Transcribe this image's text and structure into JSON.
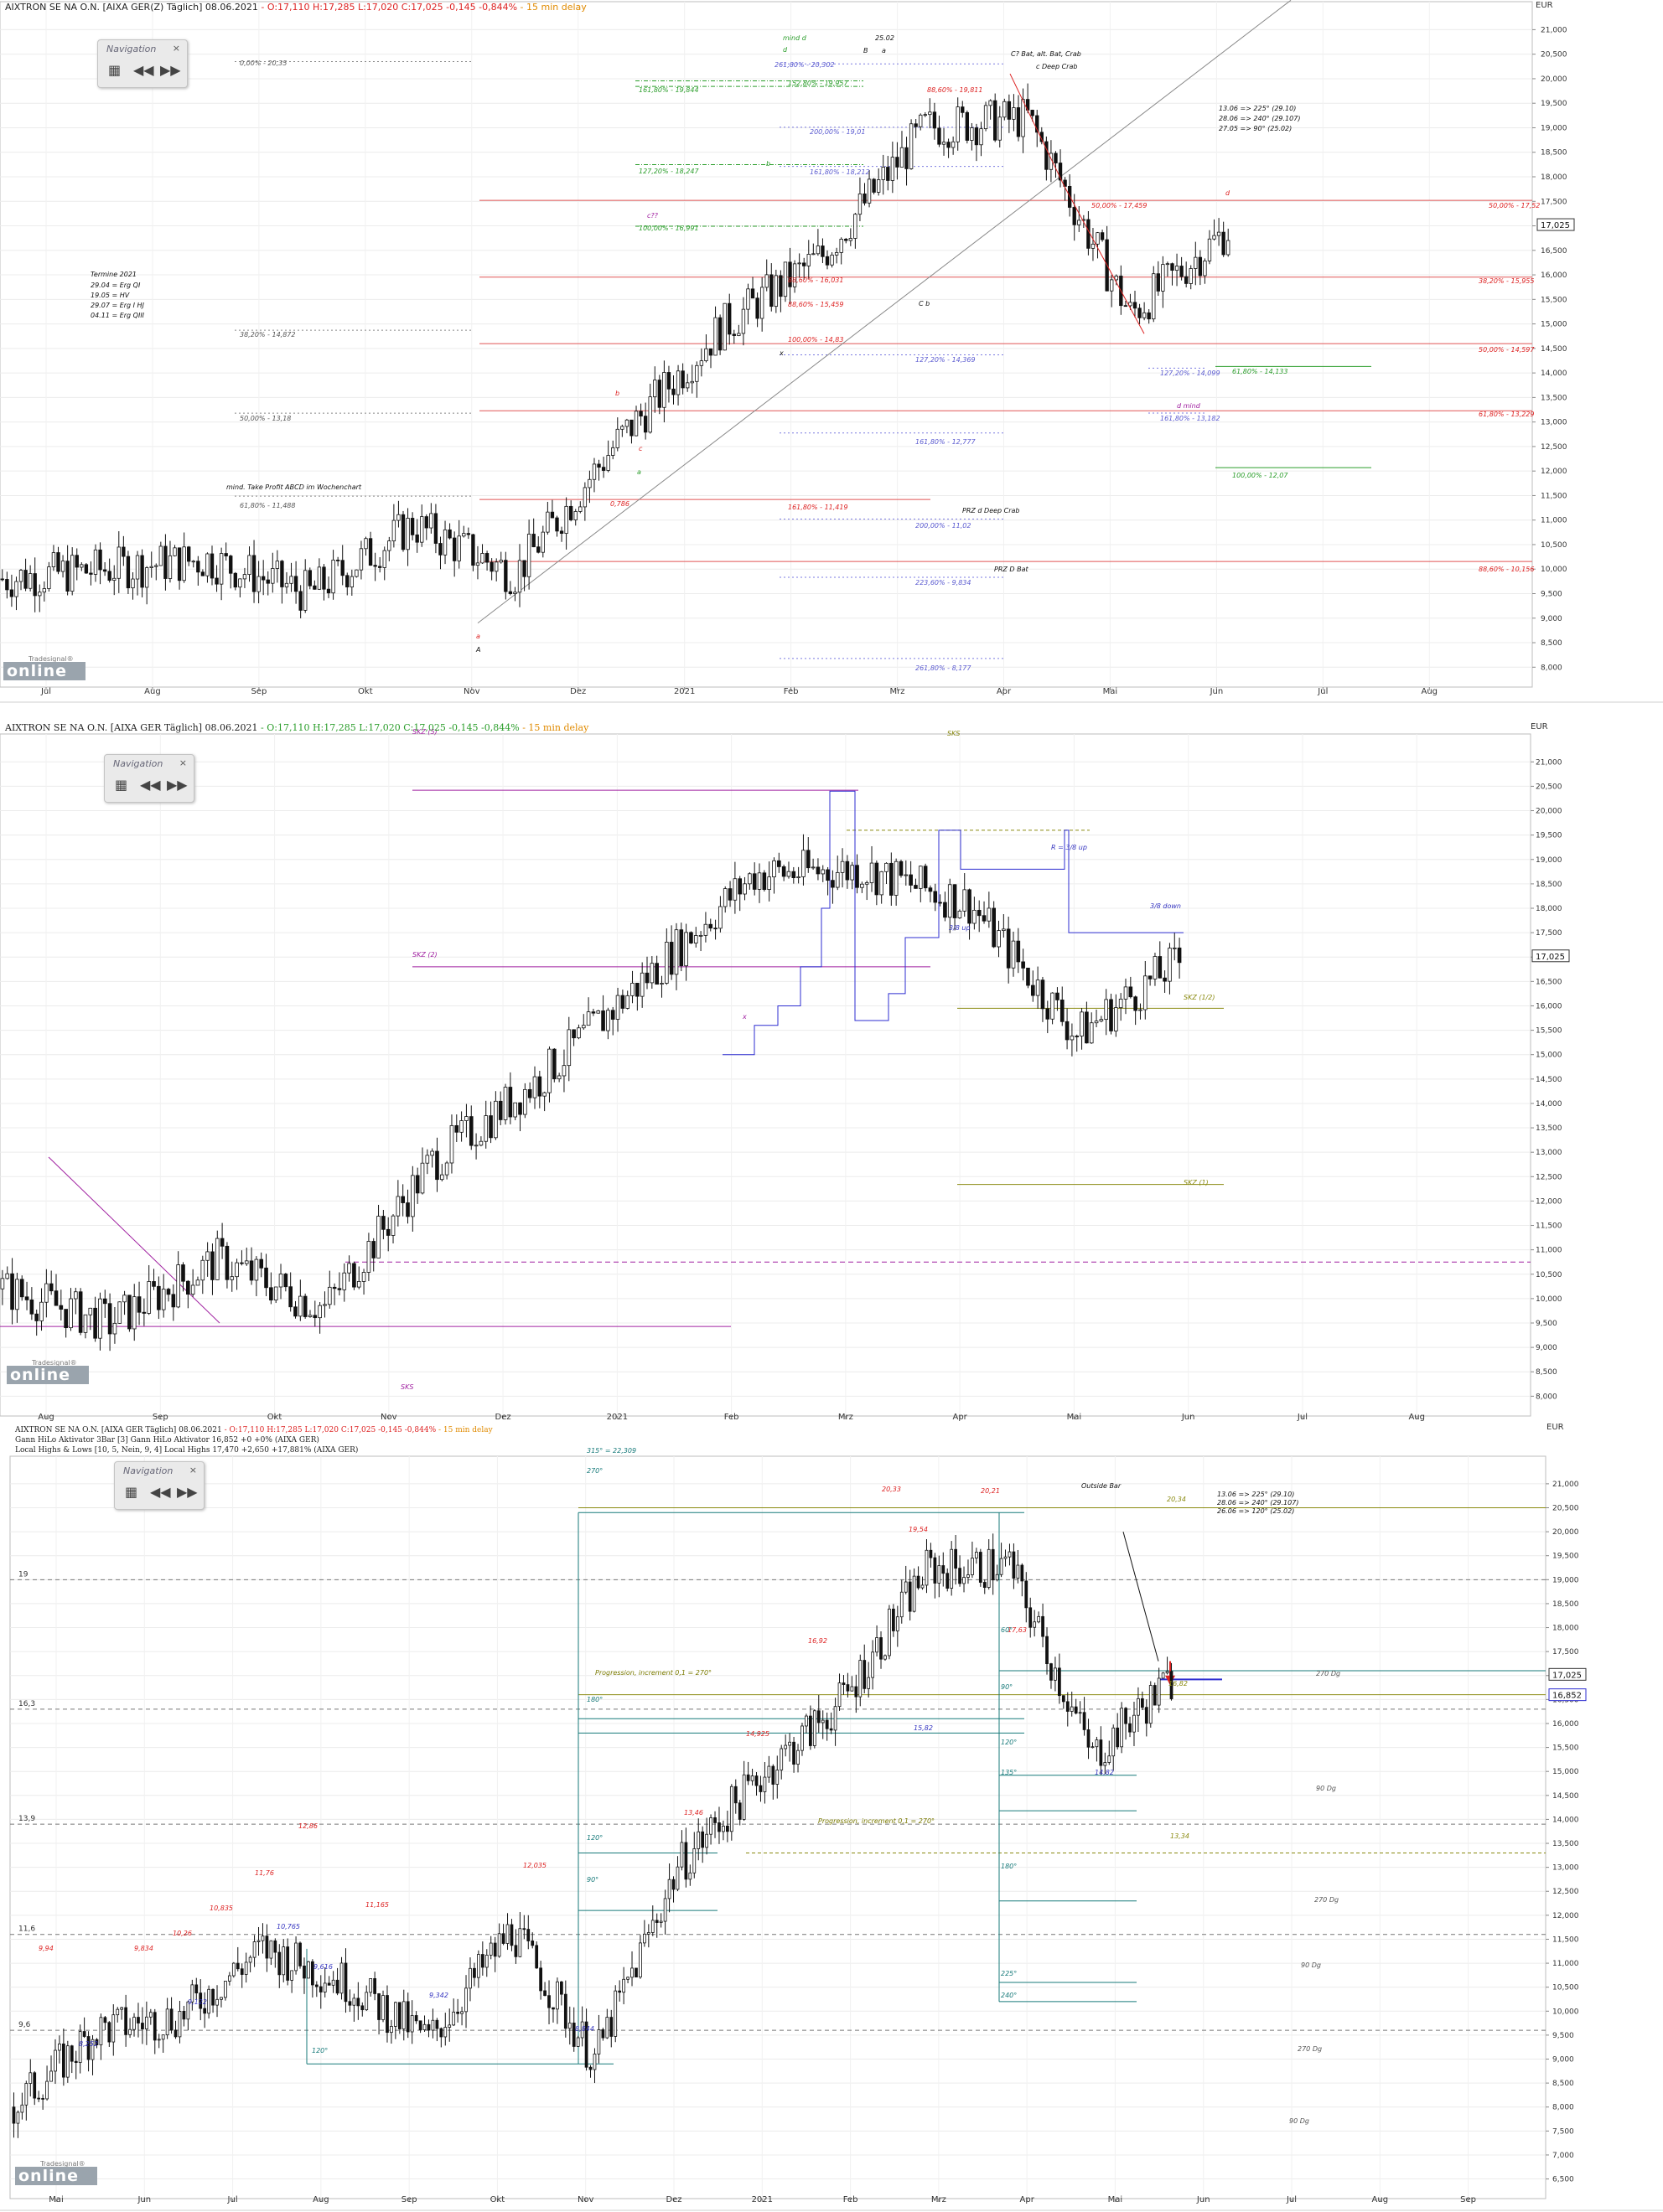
{
  "panel1": {
    "header": {
      "name": "AIXTRON SE NA O.N. [AIXA GER(Z) Täglich] 08.06.2021",
      "ohl": " - O:17,110 H:17,285 L:17,020 ",
      "close": "C:17,025 -0,145 -0,844%",
      "delay": " - 15 min delay"
    },
    "nav": {
      "title": "Navigation",
      "close": "×"
    },
    "logo": {
      "brand": "online",
      "sub": "Tradesignal®"
    },
    "currency": "EUR",
    "price_tag": "17,025",
    "y_ticks": [
      "21,000",
      "20,500",
      "20,000",
      "19,500",
      "19,000",
      "18,500",
      "18,000",
      "17,500",
      "17,000",
      "16,500",
      "16,000",
      "15,500",
      "15,000",
      "14,500",
      "14,000",
      "13,500",
      "13,000",
      "12,500",
      "12,000",
      "11,500",
      "11,000",
      "10,500",
      "10,000",
      "9,500",
      "9,000",
      "8,500",
      "8,000"
    ],
    "months": [
      "Jul",
      "Aug",
      "Sep",
      "Okt",
      "Nov",
      "Dez",
      "2021",
      "Feb",
      "Mrz",
      "Apr",
      "Mai",
      "Jun",
      "Jul",
      "Aug"
    ],
    "texts": [
      {
        "t": "0,00% - 20,35",
        "c": "#555"
      },
      {
        "t": "38,20% - 14,872",
        "c": "#555"
      },
      {
        "t": "50,00% - 13,18",
        "c": "#555"
      },
      {
        "t": "61,80% - 11,488",
        "c": "#555"
      },
      {
        "t": "mind. Take Profit ABCD im Wochenchart",
        "c": "#111"
      },
      {
        "t": "Termine 2021",
        "c": "#111"
      },
      {
        "t": "29.04 = Erg QI",
        "c": "#111"
      },
      {
        "t": "19.05 = HV",
        "c": "#111"
      },
      {
        "t": "29.07 = Erg I HJ",
        "c": "#111"
      },
      {
        "t": "04.11 = Erg QIII",
        "c": "#111"
      },
      {
        "t": "261,80% - 20,302",
        "c": "#5a5ad0"
      },
      {
        "t": "152,80% - 19,957",
        "c": "#2a9d2a"
      },
      {
        "t": "161,80% - 19,844",
        "c": "#2a9d2a"
      },
      {
        "t": "200,00% - 19,01",
        "c": "#5a5ad0"
      },
      {
        "t": "127,20% - 18,247",
        "c": "#2a9d2a"
      },
      {
        "t": "161,80% - 18,212",
        "c": "#5a5ad0"
      },
      {
        "t": "100,00% - 16,991",
        "c": "#2a9d2a"
      },
      {
        "t": "88,60% - 16,031",
        "c": "#d22"
      },
      {
        "t": "88,60% - 15,459",
        "c": "#d22"
      },
      {
        "t": "100,00% - 14,83",
        "c": "#d22"
      },
      {
        "t": "127,20% - 14,369",
        "c": "#5a5ad0"
      },
      {
        "t": "161,80% - 12,777",
        "c": "#5a5ad0"
      },
      {
        "t": "161,80% - 11,419",
        "c": "#d22"
      },
      {
        "t": "200,00% - 11,02",
        "c": "#5a5ad0"
      },
      {
        "t": "223,60% - 9,834",
        "c": "#5a5ad0"
      },
      {
        "t": "261,80% - 8,177",
        "c": "#5a5ad0"
      },
      {
        "t": "88,60% - 19,811",
        "c": "#d22"
      },
      {
        "t": "50,00% - 17,459",
        "c": "#d22"
      },
      {
        "t": "50,00% - 17,52",
        "c": "#d22"
      },
      {
        "t": "38,20% - 15,955",
        "c": "#d22"
      },
      {
        "t": "50,00% - 14,597",
        "c": "#d22"
      },
      {
        "t": "61,80% - 13,229",
        "c": "#d22"
      },
      {
        "t": "88,60% - 10,156",
        "c": "#d22"
      },
      {
        "t": "127,20% - 14,099",
        "c": "#5a5ad0"
      },
      {
        "t": "161,80% - 13,182",
        "c": "#5a5ad0"
      },
      {
        "t": "61,80% - 14,133",
        "c": "#2a9d2a"
      },
      {
        "t": "100,00% - 12,07",
        "c": "#2a9d2a"
      },
      {
        "t": "C? Bat, alt. Bat, Crab",
        "c": "#111"
      },
      {
        "t": "c Deep Crab",
        "c": "#111"
      },
      {
        "t": "PRZ d Deep Crab",
        "c": "#111"
      },
      {
        "t": "PRZ D Bat",
        "c": "#111"
      },
      {
        "t": "13.06 => 225° (29.10)",
        "c": "#111"
      },
      {
        "t": "28.06 => 240° (29.107)",
        "c": "#111"
      },
      {
        "t": "27.05 => 90° (25.02)",
        "c": "#111"
      },
      {
        "t": "25.02",
        "c": "#111"
      },
      {
        "t": "B",
        "c": "#111"
      },
      {
        "t": "a",
        "c": "#111"
      },
      {
        "t": "mind d",
        "c": "#2a9d2a"
      },
      {
        "t": "d mind",
        "c": "#a020a0"
      },
      {
        "t": "b",
        "c": "#2a9d2a"
      },
      {
        "t": "d",
        "c": "#d22"
      },
      {
        "t": "c??",
        "c": "#a020a0"
      },
      {
        "t": "0,786",
        "c": "#d22"
      },
      {
        "t": "C b",
        "c": "#111"
      },
      {
        "t": "A",
        "c": "#111"
      },
      {
        "t": "a",
        "c": "#d22"
      },
      {
        "t": "b",
        "c": "#d22"
      },
      {
        "t": "c",
        "c": "#d22"
      },
      {
        "t": "a",
        "c": "#2a9d2a"
      },
      {
        "t": "x",
        "c": "#111"
      },
      {
        "t": "d",
        "c": "#2a9d2a"
      }
    ]
  },
  "panel2": {
    "header": {
      "name": "AIXTRON SE NA O.N. [AIXA GER Täglich] 08.06.2021",
      "ohl": " - O:17,110 H:17,285 L:17,020 ",
      "close": "C:17,025 -0,145 -0,844%",
      "delay": " - 15 min delay"
    },
    "nav": {
      "title": "Navigation",
      "close": "×"
    },
    "logo": {
      "brand": "online",
      "sub": "Tradesignal®"
    },
    "currency": "EUR",
    "price_tag": "17,025",
    "y_ticks": [
      "21,000",
      "20,500",
      "20,000",
      "19,500",
      "19,000",
      "18,500",
      "18,000",
      "17,500",
      "17,000",
      "16,500",
      "16,000",
      "15,500",
      "15,000",
      "14,500",
      "14,000",
      "13,500",
      "13,000",
      "12,500",
      "12,000",
      "11,500",
      "11,000",
      "10,500",
      "10,000",
      "9,500",
      "9,000",
      "8,500",
      "8,000"
    ],
    "months": [
      "Aug",
      "Sep",
      "Okt",
      "Nov",
      "Dez",
      "2021",
      "Feb",
      "Mrz",
      "Apr",
      "Mai",
      "Jun",
      "Jul",
      "Aug"
    ],
    "texts": [
      {
        "t": "SKZ (5)",
        "c": "#a020a0"
      },
      {
        "t": "SKZ (2)",
        "c": "#a020a0"
      },
      {
        "t": "SKZ (1/2)",
        "c": "#8a8a10"
      },
      {
        "t": "SKZ (1)",
        "c": "#8a8a10"
      },
      {
        "t": "SKS",
        "c": "#a020a0"
      },
      {
        "t": "SKS",
        "c": "#8a8a10"
      },
      {
        "t": "x",
        "c": "#a020a0"
      },
      {
        "t": "3/8 down",
        "c": "#3535c0"
      },
      {
        "t": "3/8 up",
        "c": "#3535c0"
      },
      {
        "t": "R = 3/8 up",
        "c": "#3535c0"
      }
    ]
  },
  "panel3": {
    "header": {
      "name": "AIXTRON SE NA O.N. [AIXA GER Täglich] 08.06.2021",
      "ohl": " - O:17,110 H:17,285 L:17,020 ",
      "close": "C:17,025 -0,145 -0,844%",
      "delay": " - 15 min delay"
    },
    "legend2": "Gann HiLo Aktivator 3Bar [3] Gann HiLo Aktivator 16,852 +0 +0% (AIXA GER)",
    "legend3": "Local Highs & Lows [10, 5, Nein, 9, 4] Local Highs 17,470 +2,650 +17,881% (AIXA GER)",
    "nav": {
      "title": "Navigation",
      "close": "×"
    },
    "logo": {
      "brand": "online",
      "sub": "Tradesignal®"
    },
    "currency": "EUR",
    "price_tags": [
      "17,025",
      "16,852"
    ],
    "y_ticks": [
      "21,000",
      "20,500",
      "20,000",
      "19,500",
      "19,000",
      "18,500",
      "18,000",
      "17,500",
      "17,000",
      "16,500",
      "16,000",
      "15,500",
      "15,000",
      "14,500",
      "14,000",
      "13,500",
      "13,000",
      "12,500",
      "12,000",
      "11,500",
      "11,000",
      "10,500",
      "10,000",
      "9,500",
      "9,000",
      "8,500",
      "8,000",
      "7,500",
      "7,000",
      "6,500"
    ],
    "months": [
      "Mai",
      "Jun",
      "Jul",
      "Aug",
      "Sep",
      "Okt",
      "Nov",
      "Dez",
      "2021",
      "Feb",
      "Mrz",
      "Apr",
      "Mai",
      "Jun",
      "Jul",
      "Aug",
      "Sep"
    ],
    "left_levels": [
      "19",
      "16,3",
      "13,9",
      "11,6",
      "9,6"
    ],
    "texts": [
      {
        "t": "315° = 22,309",
        "c": "#177a7a"
      },
      {
        "t": "270°",
        "c": "#177a7a"
      },
      {
        "t": "20,33",
        "c": "#d22"
      },
      {
        "t": "20,21",
        "c": "#d22"
      },
      {
        "t": "Outside Bar",
        "c": "#111"
      },
      {
        "t": "20,34",
        "c": "#8a8a10"
      },
      {
        "t": "13.06 => 225° (29.10)",
        "c": "#111"
      },
      {
        "t": "28.06 => 240° (29.107)",
        "c": "#111"
      },
      {
        "t": "26.06 => 120° (25.02)",
        "c": "#111"
      },
      {
        "t": "19,54",
        "c": "#d22"
      },
      {
        "t": "17,63",
        "c": "#d22"
      },
      {
        "t": "60°",
        "c": "#177a7a"
      },
      {
        "t": "16,92",
        "c": "#d22"
      },
      {
        "t": "Progression, increment 0,1 = 270°",
        "c": "#7a7a00"
      },
      {
        "t": "270 Dg",
        "c": "#555"
      },
      {
        "t": "16,82",
        "c": "#8a8a10"
      },
      {
        "t": "180°",
        "c": "#177a7a"
      },
      {
        "t": "90°",
        "c": "#177a7a"
      },
      {
        "t": "15,82",
        "c": "#3535c0"
      },
      {
        "t": "14,925",
        "c": "#d22"
      },
      {
        "t": "120°",
        "c": "#177a7a"
      },
      {
        "t": "14,82",
        "c": "#3535c0"
      },
      {
        "t": "135°",
        "c": "#177a7a"
      },
      {
        "t": "90 Dg",
        "c": "#555"
      },
      {
        "t": "Progression, increment 0,1 = 270°",
        "c": "#7a7a00"
      },
      {
        "t": "13,46",
        "c": "#d22"
      },
      {
        "t": "13,34",
        "c": "#8a8a10"
      },
      {
        "t": "120°",
        "c": "#177a7a"
      },
      {
        "t": "90°",
        "c": "#177a7a"
      },
      {
        "t": "180°",
        "c": "#177a7a"
      },
      {
        "t": "12,86",
        "c": "#d22"
      },
      {
        "t": "12,035",
        "c": "#d22"
      },
      {
        "t": "270 Dg",
        "c": "#555"
      },
      {
        "t": "11,76",
        "c": "#d22"
      },
      {
        "t": "10,835",
        "c": "#d22"
      },
      {
        "t": "11,165",
        "c": "#d22"
      },
      {
        "t": "10,765",
        "c": "#3535c0"
      },
      {
        "t": "225°",
        "c": "#177a7a"
      },
      {
        "t": "240°",
        "c": "#177a7a"
      },
      {
        "t": "10,26",
        "c": "#d22"
      },
      {
        "t": "9,94",
        "c": "#d22"
      },
      {
        "t": "9,834",
        "c": "#d22"
      },
      {
        "t": "9,616",
        "c": "#3535c0"
      },
      {
        "t": "9,342",
        "c": "#3535c0"
      },
      {
        "t": "9,122",
        "c": "#3535c0"
      },
      {
        "t": "90 Dg",
        "c": "#555"
      },
      {
        "t": "8,844",
        "c": "#3535c0"
      },
      {
        "t": "120°",
        "c": "#177a7a"
      },
      {
        "t": "8,252",
        "c": "#3535c0"
      },
      {
        "t": "270 Dg",
        "c": "#555"
      },
      {
        "t": "90 Dg",
        "c": "#555"
      }
    ]
  },
  "chart_data": [
    {
      "type": "candlestick",
      "title": "AIXTRON SE NA O.N. [AIXA GER(Z) Täglich] 08.06.2021",
      "ylim": [
        7.8,
        21.4
      ],
      "grid": true,
      "ohlc_last": {
        "open": 17.11,
        "high": 17.285,
        "low": 17.02,
        "close": 17.025,
        "change": -0.145,
        "change_pct": -0.844
      },
      "x": [
        "2020-06",
        "2020-07",
        "2020-08",
        "2020-09",
        "2020-10",
        "2020-11",
        "2020-12",
        "2021-01",
        "2021-02",
        "2021-03",
        "2021-04",
        "2021-05",
        "2021-06"
      ],
      "close": [
        9.8,
        10.0,
        10.2,
        9.5,
        10.9,
        9.9,
        12.6,
        14.9,
        16.4,
        19.0,
        19.2,
        15.2,
        17.0
      ],
      "levels": [
        20.35,
        14.872,
        13.18,
        11.488,
        17.52,
        15.955,
        14.597,
        13.229,
        10.156,
        14.133,
        12.07
      ]
    },
    {
      "type": "candlestick",
      "title": "AIXTRON SE NA O.N. [AIXA GER Täglich] 08.06.2021",
      "ylim": [
        7.8,
        21.4
      ],
      "grid": true,
      "x": [
        "2020-07",
        "2020-08",
        "2020-09",
        "2020-10",
        "2020-11",
        "2020-12",
        "2021-01",
        "2021-02",
        "2021-03",
        "2021-04",
        "2021-05",
        "2021-06"
      ],
      "close": [
        10.2,
        9.5,
        10.8,
        9.8,
        12.8,
        14.5,
        16.6,
        18.7,
        18.8,
        18.1,
        15.4,
        17.0
      ]
    },
    {
      "type": "candlestick",
      "title": "AIXTRON SE NA O.N. [AIXA GER Täglich] 08.06.2021",
      "ylim": [
        6.3,
        21.4
      ],
      "grid": true,
      "x": [
        "2020-04",
        "2020-05",
        "2020-06",
        "2020-07",
        "2020-08",
        "2020-09",
        "2020-10",
        "2020-11",
        "2020-12",
        "2021-01",
        "2021-02",
        "2021-03",
        "2021-04",
        "2021-05",
        "2021-06"
      ],
      "close": [
        8.0,
        9.6,
        9.9,
        11.3,
        10.6,
        9.4,
        11.7,
        9.0,
        13.0,
        14.9,
        16.5,
        19.2,
        19.3,
        15.3,
        17.0
      ],
      "local_highs": [
        9.94,
        9.834,
        10.26,
        10.835,
        11.76,
        12.86,
        11.165,
        12.035,
        13.46,
        14.925,
        16.92,
        20.33,
        19.54,
        20.21,
        17.63
      ],
      "local_lows": [
        8.252,
        9.122,
        10.765,
        9.616,
        9.342,
        8.844,
        15.82,
        14.82
      ],
      "gann_hilo": 16.852
    }
  ]
}
